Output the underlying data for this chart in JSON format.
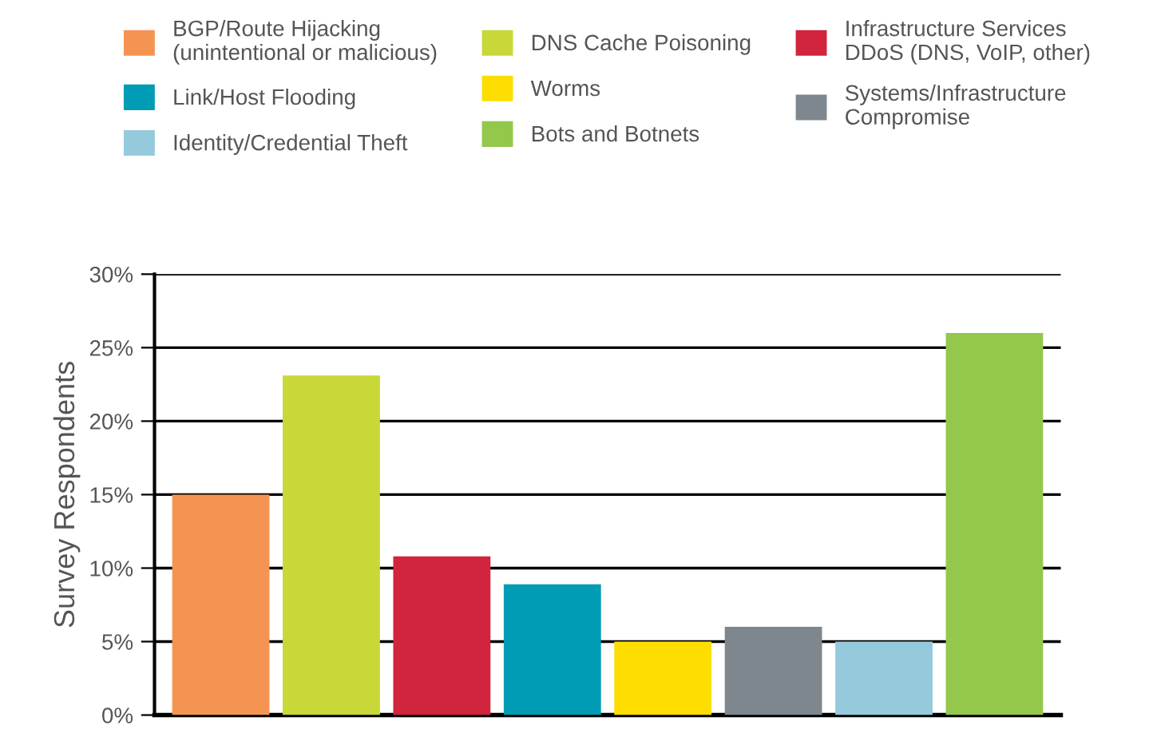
{
  "chart_data": {
    "type": "bar",
    "ylabel": "Survey Respondents",
    "categories": [
      null,
      null,
      null,
      null,
      null,
      null,
      null,
      null
    ],
    "series": [
      {
        "name": "BGP/Route Hijacking\n(unintentional or malicious)",
        "color": "#f59352",
        "values": [
          15,
          null,
          null,
          null,
          null,
          null,
          null,
          null
        ]
      },
      {
        "name": "DNS Cache Poisoning",
        "color": "#c8d838",
        "values": [
          null,
          23.1,
          null,
          null,
          null,
          null,
          null,
          null
        ]
      },
      {
        "name": "Infrastructure Services\nDDoS (DNS, VoIP, other)",
        "color": "#d0253c",
        "values": [
          null,
          null,
          10.8,
          null,
          null,
          null,
          null,
          null
        ]
      },
      {
        "name": "Link/Host Flooding",
        "color": "#009bb4",
        "values": [
          null,
          null,
          null,
          8.9,
          null,
          null,
          null,
          null
        ]
      },
      {
        "name": "Worms",
        "color": "#fedd00",
        "values": [
          null,
          null,
          null,
          null,
          5,
          null,
          null,
          null
        ]
      },
      {
        "name": "Systems/Infrastructure\nCompromise",
        "color": "#7e878d",
        "values": [
          null,
          null,
          null,
          null,
          null,
          6,
          null,
          null
        ]
      },
      {
        "name": "Identity/Credential Theft",
        "color": "#95cadc",
        "values": [
          null,
          null,
          null,
          null,
          null,
          null,
          5,
          null
        ]
      },
      {
        "name": "Bots and Botnets",
        "color": "#94c84c",
        "values": [
          null,
          null,
          null,
          null,
          null,
          null,
          null,
          26
        ]
      }
    ],
    "ylim": [
      0,
      30
    ],
    "yticks": [
      {
        "value": 0,
        "label": "0%"
      },
      {
        "value": 5,
        "label": "5%"
      },
      {
        "value": 10,
        "label": "10%"
      },
      {
        "value": 15,
        "label": "15%"
      },
      {
        "value": 20,
        "label": "20%"
      },
      {
        "value": 25,
        "label": "25%"
      },
      {
        "value": 30,
        "label": "30%"
      }
    ],
    "grid": "y",
    "legend": "top"
  }
}
